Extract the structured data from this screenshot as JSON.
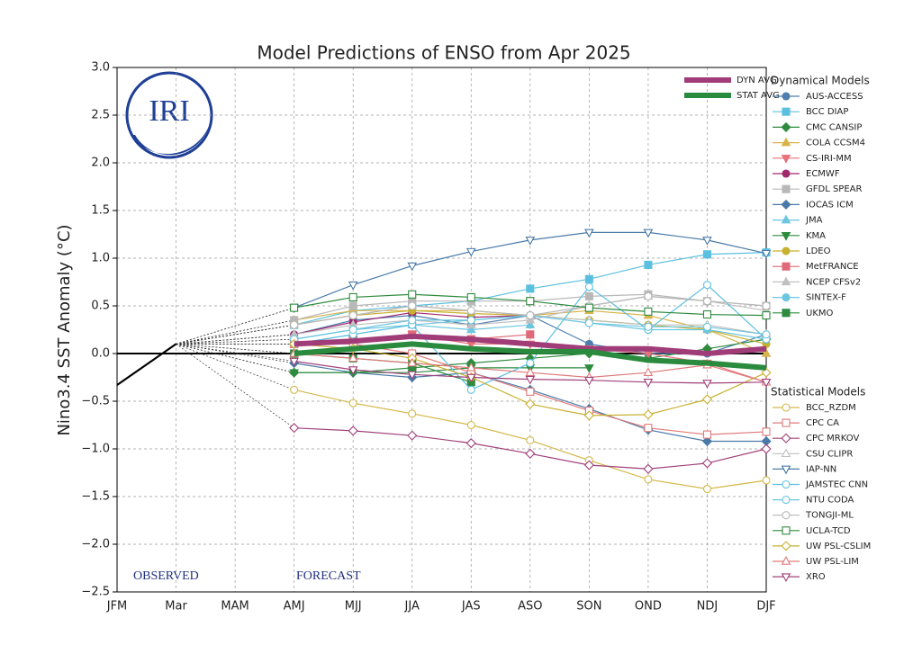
{
  "chart_data": {
    "type": "line",
    "title": "Model Predictions of ENSO from Apr 2025",
    "y_label": "Nino3.4 SST Anomaly (°C)",
    "logo_text": "IRI",
    "annotations": [
      "OBSERVED",
      "FORECAST"
    ],
    "categories": [
      "JFM",
      "Mar",
      "MAM",
      "AMJ",
      "MJJ",
      "JJA",
      "JAS",
      "ASO",
      "SON",
      "OND",
      "NDJ",
      "DJF"
    ],
    "ylim": [
      -2.5,
      3.0
    ],
    "yticks": [
      {
        "value": -2.5,
        "label": "−2.5"
      },
      {
        "value": -2.0,
        "label": "−2.0"
      },
      {
        "value": -1.5,
        "label": "−1.5"
      },
      {
        "value": -1.0,
        "label": "−1.0"
      },
      {
        "value": -0.5,
        "label": "−0.5"
      },
      {
        "value": 0,
        "label": "0.0"
      },
      {
        "value": 0.5,
        "label": "0.5"
      },
      {
        "value": 1.0,
        "label": "1.0"
      },
      {
        "value": 1.5,
        "label": "1.5"
      },
      {
        "value": 2.0,
        "label": "2.0"
      },
      {
        "value": 2.5,
        "label": "2.5"
      },
      {
        "value": 3.0,
        "label": "3.0"
      }
    ],
    "grid": true,
    "observed": {
      "color": "#000000",
      "values": [
        -0.33,
        0.1,
        null,
        null,
        null,
        null,
        null,
        null,
        null,
        null,
        null,
        null
      ]
    },
    "averages": [
      {
        "name": "DYN AVG",
        "color": "#a03c78",
        "values": [
          null,
          null,
          null,
          0.1,
          0.13,
          0.18,
          0.15,
          0.1,
          0.05,
          0.05,
          0.0,
          0.05
        ]
      },
      {
        "name": "STAT AVG",
        "color": "#2a8a3e",
        "values": [
          null,
          null,
          null,
          0.0,
          0.05,
          0.1,
          0.05,
          0.02,
          0.02,
          -0.07,
          -0.1,
          -0.15
        ]
      }
    ],
    "dynamical": {
      "title": "Dynamical Models",
      "filled": true,
      "series": [
        {
          "name": "AUS-ACCESS",
          "color": "#4f7fae",
          "marker": "o",
          "values": [
            null,
            null,
            null,
            0.2,
            0.35,
            0.4,
            0.3,
            0.4,
            0.1,
            0.0,
            0.0,
            0.2
          ]
        },
        {
          "name": "BCC DIAP",
          "color": "#5bc0e0",
          "marker": "s",
          "values": [
            null,
            null,
            null,
            0.3,
            0.45,
            0.5,
            0.55,
            0.68,
            0.78,
            0.93,
            1.04,
            1.06
          ]
        },
        {
          "name": "CMC CANSIP",
          "color": "#2e8b3e",
          "marker": "D",
          "values": [
            null,
            null,
            null,
            -0.2,
            -0.2,
            -0.15,
            -0.1,
            -0.05,
            0.0,
            -0.05,
            0.05,
            0.15
          ]
        },
        {
          "name": "COLA CCSM4",
          "color": "#d9b44a",
          "marker": "^",
          "values": [
            null,
            null,
            null,
            0.35,
            0.45,
            0.45,
            0.45,
            0.4,
            0.45,
            0.4,
            0.25,
            0.0
          ]
        },
        {
          "name": "CS-IRI-MM",
          "color": "#e8737a",
          "marker": "v",
          "values": [
            null,
            null,
            null,
            0.1,
            0.15,
            0.2,
            0.1,
            0.1,
            0.05,
            0.0,
            -0.1,
            -0.3
          ]
        },
        {
          "name": "ECMWF",
          "color": "#a0296e",
          "marker": "o",
          "values": [
            null,
            null,
            null,
            0.2,
            0.33,
            0.43,
            0.38,
            0.4,
            null,
            null,
            null,
            null
          ]
        },
        {
          "name": "GFDL SPEAR",
          "color": "#b8b8b8",
          "marker": "s",
          "values": [
            null,
            null,
            null,
            0.35,
            0.5,
            0.55,
            0.55,
            0.55,
            0.6,
            0.62,
            0.55,
            0.5
          ]
        },
        {
          "name": "IOCAS ICM",
          "color": "#4a7aa7",
          "marker": "D",
          "values": [
            null,
            null,
            null,
            -0.1,
            -0.2,
            -0.25,
            -0.2,
            -0.38,
            -0.58,
            -0.8,
            -0.92,
            -0.92
          ]
        },
        {
          "name": "JMA",
          "color": "#6cc6e0",
          "marker": "^",
          "values": [
            null,
            null,
            null,
            0.1,
            0.2,
            0.3,
            0.25,
            0.3,
            null,
            null,
            null,
            null
          ]
        },
        {
          "name": "KMA",
          "color": "#2e8b3e",
          "marker": "v",
          "values": [
            null,
            null,
            null,
            -0.2,
            -0.2,
            -0.2,
            -0.15,
            -0.15,
            -0.15,
            null,
            null,
            null
          ]
        },
        {
          "name": "LDEO",
          "color": "#c8b030",
          "marker": "o",
          "values": [
            null,
            null,
            null,
            0.3,
            0.4,
            0.45,
            0.42,
            0.4,
            0.35,
            0.3,
            0.25,
            0.1
          ]
        },
        {
          "name": "MetFRANCE",
          "color": "#e06a78",
          "marker": "s",
          "values": [
            null,
            null,
            null,
            0.1,
            0.15,
            0.2,
            0.15,
            0.2,
            null,
            null,
            null,
            null
          ]
        },
        {
          "name": "NCEP CFSv2",
          "color": "#c0c0c0",
          "marker": "^",
          "values": [
            null,
            null,
            null,
            0.2,
            0.3,
            0.35,
            0.3,
            0.35,
            0.5,
            0.6,
            0.55,
            0.45
          ]
        },
        {
          "name": "SINTEX-F",
          "color": "#6cc6e0",
          "marker": "o",
          "values": [
            null,
            null,
            null,
            0.15,
            0.25,
            0.3,
            0.35,
            0.4,
            0.32,
            0.25,
            0.25,
            0.15
          ]
        },
        {
          "name": "UKMO",
          "color": "#2e8b3e",
          "marker": "s",
          "values": [
            null,
            null,
            null,
            0.0,
            -0.05,
            -0.1,
            -0.3,
            null,
            null,
            null,
            null,
            null
          ]
        }
      ]
    },
    "statistical": {
      "title": "Statistical Models",
      "filled": false,
      "series": [
        {
          "name": "BCC_RZDM",
          "color": "#d4b84a",
          "marker": "o",
          "values": [
            null,
            null,
            null,
            -0.38,
            -0.52,
            -0.63,
            -0.75,
            -0.91,
            -1.12,
            -1.32,
            -1.42,
            -1.33
          ]
        },
        {
          "name": "CPC CA",
          "color": "#e07a7a",
          "marker": "s",
          "values": [
            null,
            null,
            null,
            0.1,
            0.1,
            0.0,
            -0.2,
            -0.4,
            -0.6,
            -0.78,
            -0.85,
            -0.82
          ]
        },
        {
          "name": "CPC MRKOV",
          "color": "#a0407a",
          "marker": "D",
          "values": [
            null,
            null,
            null,
            -0.78,
            -0.81,
            -0.86,
            -0.94,
            -1.05,
            -1.17,
            -1.21,
            -1.15,
            -1.0
          ]
        },
        {
          "name": "CSU CLIPR",
          "color": "#c0c0c0",
          "marker": "^",
          "values": [
            null,
            null,
            null,
            0.3,
            0.4,
            0.5,
            0.45,
            0.4,
            0.35,
            0.3,
            0.3,
            0.2
          ]
        },
        {
          "name": "IAP-NN",
          "color": "#4a7aa7",
          "marker": "v",
          "values": [
            null,
            null,
            null,
            0.48,
            0.72,
            0.92,
            1.07,
            1.19,
            1.27,
            1.27,
            1.19,
            1.05
          ]
        },
        {
          "name": "JAMSTEC CNN",
          "color": "#5bc0e0",
          "marker": "o",
          "values": [
            null,
            null,
            null,
            0.1,
            0.2,
            0.3,
            -0.38,
            -0.1,
            0.7,
            0.25,
            0.72,
            0.15
          ]
        },
        {
          "name": "NTU CODA",
          "color": "#6cc6e0",
          "marker": "o",
          "values": [
            null,
            null,
            null,
            0.15,
            0.25,
            0.35,
            0.35,
            0.4,
            0.32,
            0.28,
            0.28,
            0.2
          ]
        },
        {
          "name": "TONGJI-ML",
          "color": "#b8b8b8",
          "marker": "o",
          "values": [
            null,
            null,
            null,
            0.3,
            0.4,
            0.5,
            0.45,
            0.4,
            0.5,
            0.6,
            0.55,
            0.5
          ]
        },
        {
          "name": "UCLA-TCD",
          "color": "#2e8b3e",
          "marker": "s",
          "values": [
            null,
            null,
            null,
            0.48,
            0.59,
            0.62,
            0.59,
            0.55,
            0.48,
            0.44,
            0.41,
            0.4
          ]
        },
        {
          "name": "UW PSL-CSLIM",
          "color": "#c8b030",
          "marker": "D",
          "values": [
            null,
            null,
            null,
            0.1,
            0.05,
            -0.05,
            -0.25,
            -0.53,
            -0.65,
            -0.64,
            -0.48,
            -0.2
          ]
        },
        {
          "name": "UW PSL-LIM",
          "color": "#e07a7a",
          "marker": "^",
          "values": [
            null,
            null,
            null,
            0.0,
            -0.05,
            -0.1,
            -0.15,
            -0.2,
            -0.25,
            -0.2,
            -0.12,
            -0.3
          ]
        },
        {
          "name": "XRO",
          "color": "#a0407a",
          "marker": "v",
          "values": [
            null,
            null,
            null,
            -0.08,
            -0.17,
            -0.22,
            -0.25,
            -0.27,
            -0.28,
            -0.3,
            -0.31,
            -0.3
          ]
        }
      ]
    }
  }
}
